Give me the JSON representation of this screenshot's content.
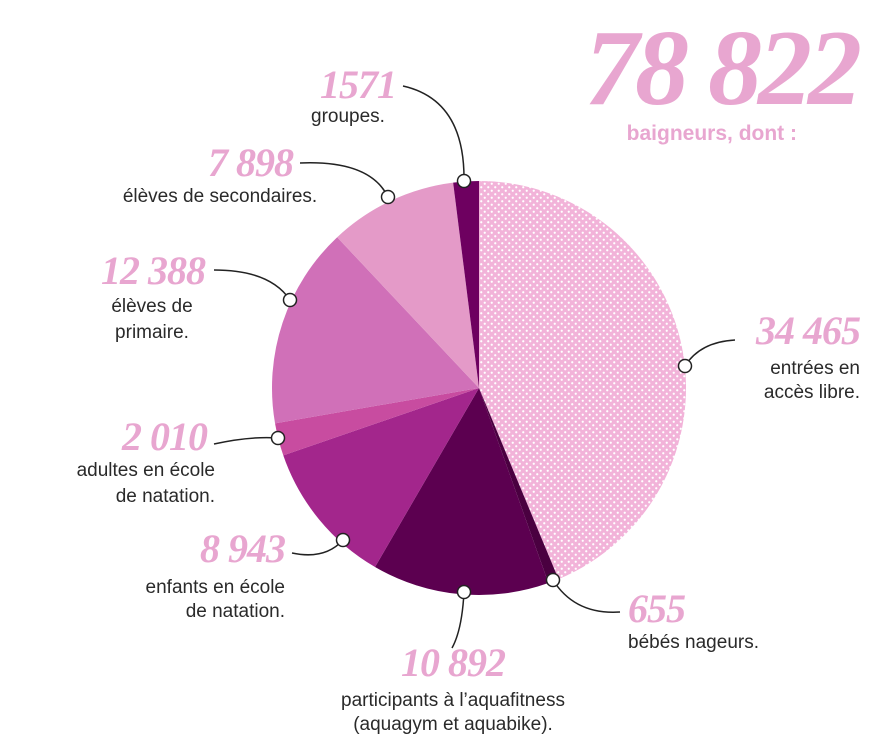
{
  "chart_data": {
    "type": "pie",
    "title": "78 822",
    "subtitle": "baigneurs, dont :",
    "categories": [
      [
        "entrées en",
        "accès libre."
      ],
      [
        "bébés nageurs."
      ],
      [
        "participants à l’aquafitness",
        "(aquagym et aquabike)."
      ],
      [
        "enfants en école",
        "de natation."
      ],
      [
        "adultes en école",
        "de natation."
      ],
      [
        "élèves de",
        "primaire."
      ],
      [
        "élèves de secondaires."
      ],
      [
        "groupes."
      ]
    ],
    "values": [
      34465,
      655,
      10892,
      8943,
      2010,
      12388,
      7898,
      1571
    ],
    "value_labels": [
      "34 465",
      "655",
      "10 892",
      "8 943",
      "2 010",
      "12 388",
      "7 898",
      "1571"
    ],
    "colors": [
      "#f2b3d9",
      "#4a0040",
      "#5c0050",
      "#a3268c",
      "#c84ca0",
      "#d070b8",
      "#e49ac8",
      "#6e0060"
    ]
  }
}
